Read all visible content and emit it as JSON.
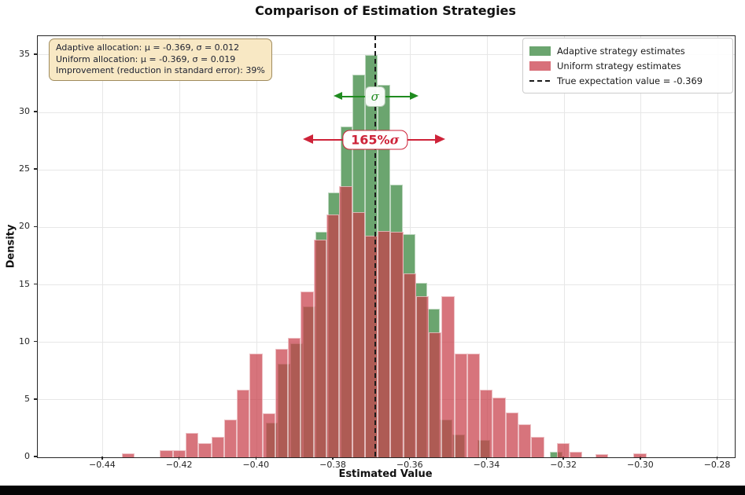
{
  "chart_data": {
    "type": "histogram",
    "title": "Comparison of Estimation Strategies",
    "xlabel": "Estimated Value",
    "ylabel": "Density",
    "grid": true,
    "legend_position": "upper right",
    "x_range": [
      -0.45697,
      -0.27561
    ],
    "y_range": [
      0,
      36.63
    ],
    "x_ticks": {
      "values": [
        -0.44,
        -0.42,
        -0.4,
        -0.38,
        -0.36,
        -0.34,
        -0.32,
        -0.3,
        -0.28
      ],
      "labels": [
        "−0.44",
        "−0.42",
        "−0.40",
        "−0.38",
        "−0.36",
        "−0.34",
        "−0.32",
        "−0.30",
        "−0.28"
      ]
    },
    "y_ticks": {
      "values": [
        0,
        5,
        10,
        15,
        20,
        25,
        30,
        35
      ],
      "labels": [
        "0",
        "5",
        "10",
        "15",
        "20",
        "25",
        "30",
        "35"
      ]
    },
    "true_value": -0.369,
    "series": [
      {
        "name": "Adaptive strategy estimates",
        "color": "#6BA56F",
        "bin_start": -0.39769,
        "bin_width": 0.00324,
        "heights": [
          3.0,
          8.1,
          9.9,
          13.1,
          19.6,
          23.0,
          28.8,
          33.3,
          35.0,
          32.4,
          23.7,
          19.4,
          15.2,
          12.9,
          3.3,
          2.0,
          0,
          1.5,
          0
        ],
        "extra_bars": [
          {
            "x_left": -0.3237,
            "height": 0.45
          }
        ]
      },
      {
        "name": "Uniform strategy estimates",
        "color": "rgba(199,62,74,0.72)",
        "bin_start": -0.43513,
        "bin_width": 0.00333,
        "heights": [
          0.35,
          0,
          0,
          0.6,
          0.6,
          2.1,
          1.2,
          1.8,
          3.3,
          5.9,
          9.0,
          3.8,
          9.4,
          10.4,
          14.4,
          18.9,
          21.1,
          23.6,
          21.3,
          19.3,
          19.7,
          19.6,
          16.0,
          14.0,
          10.9,
          14.0,
          9.0,
          9.0,
          5.9,
          5.2,
          3.9,
          2.9,
          1.8,
          0,
          1.2,
          0.45,
          0,
          0.3,
          0,
          0,
          0.35
        ],
        "extra_bars": []
      }
    ],
    "annotations": {
      "sigma_arrow": {
        "x1": -0.3797,
        "x2": -0.3577,
        "y_density": 31.3,
        "color": "#1f8b1f",
        "label": "σ"
      },
      "uniform_arrow": {
        "x1": -0.3878,
        "x2": -0.3507,
        "y_density": 27.55,
        "color": "#ce2339",
        "label_main": "165%",
        "label_sigma": "σ"
      }
    },
    "stats_box": {
      "lines": [
        "Adaptive allocation: μ = -0.369, σ = 0.012",
        "Uniform allocation: μ = -0.369, σ = 0.019",
        "Improvement (reduction in standard error): 39%"
      ],
      "bg_color": "#f8e8c4",
      "border_color": "#a08c5f"
    }
  },
  "legend": {
    "items": [
      {
        "label": "Adaptive strategy estimates",
        "swatch": "green-patch",
        "color": "#6BA56F"
      },
      {
        "label": "Uniform strategy estimates",
        "swatch": "red-patch",
        "color": "#D8707A"
      },
      {
        "label": "True expectation value = -0.369",
        "swatch": "dashed-line",
        "color": "#1a1a1a"
      }
    ]
  }
}
